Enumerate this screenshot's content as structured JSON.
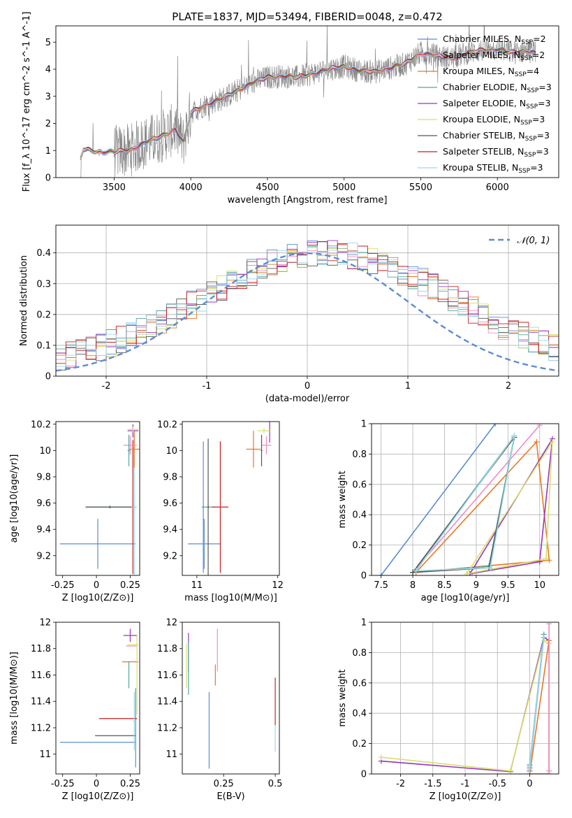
{
  "figure": {
    "title": "PLATE=1837, MJD=53494, FIBERID=0048, z=0.472"
  },
  "colors": {
    "chabrier_miles": "#5b8bd6",
    "salpeter_miles": "#ee8bc7",
    "kroupa_miles": "#e87722",
    "chabrier_elodie": "#53a6a0",
    "salpeter_elodie": "#9933bb",
    "kroupa_elodie": "#d6e06b",
    "chabrier_stelib": "#555555",
    "salpeter_stelib": "#c81e1e",
    "kroupa_stelib": "#9ad8e8",
    "data": "#888888"
  },
  "models": [
    {
      "key": "chabrier_miles",
      "prefix": "Chabrier MILES, N",
      "n": "2"
    },
    {
      "key": "salpeter_miles",
      "prefix": "Salpeter MILES, N",
      "n": "2"
    },
    {
      "key": "kroupa_miles",
      "prefix": "Kroupa MILES, N",
      "n": "4"
    },
    {
      "key": "chabrier_elodie",
      "prefix": "Chabrier ELODIE, N",
      "n": "3"
    },
    {
      "key": "salpeter_elodie",
      "prefix": "Salpeter ELODIE, N",
      "n": "3"
    },
    {
      "key": "kroupa_elodie",
      "prefix": "Kroupa ELODIE, N",
      "n": "3"
    },
    {
      "key": "chabrier_stelib",
      "prefix": "Chabrier STELIB, N",
      "n": "3"
    },
    {
      "key": "salpeter_stelib",
      "prefix": "Salpeter STELIB, N",
      "n": "3"
    },
    {
      "key": "kroupa_stelib",
      "prefix": "Kroupa STELIB, N",
      "n": "3"
    }
  ],
  "chart_data": [
    {
      "id": "spectrum",
      "type": "line",
      "xlabel": "wavelength [Angstrom, rest frame]",
      "ylabel": "Flux [f_λ 10^-17 erg cm^-2 s^-1 A^-1]",
      "xlim": [
        3120,
        6400
      ],
      "ylim": [
        0,
        5.6
      ],
      "xticks": [
        3500,
        4000,
        4500,
        5000,
        5500,
        6000
      ],
      "yticks": [
        0,
        1,
        2,
        3,
        4,
        5
      ],
      "grid": false,
      "legend": "top-right",
      "model_continuum": {
        "x": [
          3270,
          3300,
          3400,
          3500,
          3600,
          3700,
          3800,
          3900,
          3950,
          4000,
          4100,
          4200,
          4300,
          4400,
          4500,
          4600,
          4700,
          4800,
          4900,
          5000,
          5100,
          5200,
          5300,
          5400,
          5500,
          5600,
          5700,
          5800,
          5900,
          6000,
          6100,
          6200,
          6250
        ],
        "y": [
          0.5,
          1.05,
          0.95,
          0.95,
          1.0,
          1.3,
          1.5,
          1.8,
          1.3,
          2.4,
          2.7,
          2.9,
          3.2,
          3.5,
          3.7,
          3.75,
          3.7,
          3.85,
          4.0,
          4.1,
          3.95,
          3.9,
          4.05,
          4.2,
          4.6,
          4.5,
          4.4,
          4.6,
          4.7,
          4.75,
          4.6,
          4.7,
          4.6
        ]
      }
    },
    {
      "id": "residuals",
      "type": "line",
      "xlabel": "(data-model)/error",
      "ylabel": "Normed distribution",
      "xlim": [
        -2.5,
        2.5
      ],
      "ylim": [
        0,
        0.49
      ],
      "xticks": [
        -2,
        -1,
        0,
        1,
        2
      ],
      "yticks": [
        0.0,
        0.1,
        0.2,
        0.3,
        0.4
      ],
      "grid": true,
      "legend_label": "𝒩(0, 1)",
      "legend": "top-right",
      "gaussian": {
        "mean": 0,
        "sigma": 1
      }
    },
    {
      "id": "z_age",
      "type": "scatter",
      "xlabel": "Z [log10(Z/Z⊙)]",
      "ylabel": "age [log10(age/yr)]",
      "xlim": [
        -0.3,
        0.32
      ],
      "ylim": [
        9.05,
        10.22
      ],
      "xticks": [
        -0.25,
        0.0,
        0.25
      ],
      "yticks": [
        9.2,
        9.4,
        9.6,
        9.8,
        10.0,
        10.2
      ],
      "points": [
        {
          "m": "chabrier_miles",
          "x": 0.01,
          "y": 9.29,
          "xe": 0.28,
          "ye": 0.19
        },
        {
          "m": "chabrier_elodie",
          "x": 0.1,
          "y": 9.57,
          "xe": 0.18,
          "ye": 0.01
        },
        {
          "m": "chabrier_stelib",
          "x": 0.1,
          "y": 9.57,
          "xe": 0.18,
          "ye": 0.01
        },
        {
          "m": "salpeter_stelib",
          "x": 0.27,
          "y": 9.57,
          "xe": 0.02,
          "ye": 0.51
        },
        {
          "m": "kroupa_stelib",
          "x": 0.28,
          "y": 9.57,
          "xe": 0.02,
          "ye": 0.55
        },
        {
          "m": "kroupa_miles",
          "x": 0.28,
          "y": 10.01,
          "xe": 0.04,
          "ye": 0.14
        },
        {
          "m": "salpeter_miles",
          "x": 0.25,
          "y": 10.04,
          "xe": 0.05,
          "ye": 0.07
        },
        {
          "m": "salpeter_elodie",
          "x": 0.27,
          "y": 10.15,
          "xe": 0.04,
          "ye": 0.05
        },
        {
          "m": "kroupa_elodie",
          "x": 0.27,
          "y": 10.16,
          "xe": 0.04,
          "ye": 0.02
        },
        {
          "m": "chabrier_elodie",
          "x": 0.24,
          "y": 10.0,
          "xe": 0.01,
          "ye": 0.12
        }
      ]
    },
    {
      "id": "mass_age",
      "type": "scatter",
      "xlabel": "mass [log10(M/M⊙)]",
      "ylabel": "",
      "xlim": [
        10.82,
        12.02
      ],
      "ylim": [
        9.05,
        10.22
      ],
      "xticks": [
        11,
        12
      ],
      "yticks": [
        9.2,
        9.4,
        9.6,
        9.8,
        10.0,
        10.2
      ],
      "points": [
        {
          "m": "chabrier_miles",
          "x": 11.09,
          "y": 9.29,
          "xe": 0.2,
          "ye": 0.19
        },
        {
          "m": "chabrier_miles",
          "x": 11.08,
          "y": 9.57,
          "xe": 0.01,
          "ye": 0.5
        },
        {
          "m": "chabrier_elodie",
          "x": 11.14,
          "y": 9.57,
          "xe": 0.08,
          "ye": 0.01
        },
        {
          "m": "chabrier_stelib",
          "x": 11.14,
          "y": 9.57,
          "xe": 0.01,
          "ye": 0.52
        },
        {
          "m": "salpeter_stelib",
          "x": 11.29,
          "y": 9.57,
          "xe": 0.1,
          "ye": 0.5
        },
        {
          "m": "kroupa_miles",
          "x": 11.7,
          "y": 10.01,
          "xe": 0.09,
          "ye": 0.14
        },
        {
          "m": "salpeter_miles",
          "x": 11.86,
          "y": 10.04,
          "xe": 0.06,
          "ye": 0.07
        },
        {
          "m": "salpeter_elodie",
          "x": 11.9,
          "y": 10.15,
          "xe": 0.01,
          "ye": 0.09
        },
        {
          "m": "kroupa_elodie",
          "x": 11.83,
          "y": 10.15,
          "xe": 0.08,
          "ye": 0.02
        },
        {
          "m": "chabrier_stelib",
          "x": 11.8,
          "y": 10.0,
          "xe": 0.01,
          "ye": 0.12
        }
      ]
    },
    {
      "id": "age_weight",
      "type": "line",
      "xlabel": "age [log10(age/yr)]",
      "ylabel": "mass weight",
      "xlim": [
        7.35,
        10.3
      ],
      "ylim": [
        0,
        1
      ],
      "xticks": [
        7.5,
        8.0,
        8.5,
        9.0,
        9.5,
        10.0
      ],
      "yticks": [
        0.0,
        0.2,
        0.4,
        0.6,
        0.8,
        1.0
      ],
      "grid": true,
      "series": [
        {
          "m": "chabrier_miles",
          "x": [
            7.5,
            9.3
          ],
          "y": [
            0.0,
            1.0
          ]
        },
        {
          "m": "salpeter_miles",
          "x": [
            8.0,
            10.0
          ],
          "y": [
            0.02,
            0.99
          ]
        },
        {
          "m": "kroupa_miles",
          "x": [
            8.05,
            9.95,
            10.15,
            8.05
          ],
          "y": [
            0.02,
            0.88,
            0.1,
            0.02
          ]
        },
        {
          "m": "chabrier_elodie",
          "x": [
            8.0,
            9.2,
            9.6,
            8.0
          ],
          "y": [
            0.02,
            0.06,
            0.92,
            0.02
          ]
        },
        {
          "m": "salpeter_elodie",
          "x": [
            8.9,
            10.0,
            10.2,
            8.9
          ],
          "y": [
            0.01,
            0.09,
            0.9,
            0.01
          ]
        },
        {
          "m": "kroupa_elodie",
          "x": [
            8.85,
            10.1,
            10.2,
            8.85
          ],
          "y": [
            0.01,
            0.11,
            0.88,
            0.01
          ]
        },
        {
          "m": "chabrier_stelib",
          "x": [
            8.0,
            9.2,
            9.6,
            8.0
          ],
          "y": [
            0.02,
            0.05,
            0.91,
            0.02
          ]
        },
        {
          "m": "kroupa_stelib",
          "x": [
            8.05,
            9.22,
            9.6,
            8.05
          ],
          "y": [
            0.03,
            0.05,
            0.92,
            0.03
          ]
        }
      ]
    },
    {
      "id": "z_mass",
      "type": "scatter",
      "xlabel": "Z [log10(Z/Z⊙)]",
      "ylabel": "mass [log10(M/M⊙)]",
      "xlim": [
        -0.3,
        0.32
      ],
      "ylim": [
        10.85,
        12.0
      ],
      "xticks": [
        -0.25,
        0.0,
        0.25
      ],
      "yticks": [
        11.0,
        11.2,
        11.4,
        11.6,
        11.8,
        12.0
      ],
      "points": [
        {
          "m": "chabrier_miles",
          "x": 0.01,
          "y": 11.09,
          "xe": 0.28,
          "ye": 0.0
        },
        {
          "m": "chabrier_miles",
          "x": 0.29,
          "y": 11.2,
          "xe": 0.0,
          "ye": 0.3
        },
        {
          "m": "chabrier_stelib",
          "x": 0.14,
          "y": 11.14,
          "xe": 0.15,
          "ye": 0.0
        },
        {
          "m": "salpeter_stelib",
          "x": 0.16,
          "y": 11.27,
          "xe": 0.14,
          "ye": 0.0
        },
        {
          "m": "kroupa_stelib",
          "x": 0.28,
          "y": 11.25,
          "xe": 0.01,
          "ye": 0.22
        },
        {
          "m": "kroupa_miles",
          "x": 0.25,
          "y": 11.7,
          "xe": 0.06,
          "ye": 0.0
        },
        {
          "m": "salpeter_miles",
          "x": 0.26,
          "y": 11.82,
          "xe": 0.04,
          "ye": 0.0
        },
        {
          "m": "salpeter_elodie",
          "x": 0.25,
          "y": 11.9,
          "xe": 0.05,
          "ye": 0.05
        },
        {
          "m": "kroupa_elodie",
          "x": 0.27,
          "y": 11.83,
          "xe": 0.04,
          "ye": 0.0
        },
        {
          "m": "chabrier_elodie",
          "x": 0.24,
          "y": 11.6,
          "xe": 0.0,
          "ye": 0.1
        },
        {
          "m": "kroupa_elodie",
          "x": 0.3,
          "y": 11.6,
          "xe": 0.0,
          "ye": 0.3
        }
      ]
    },
    {
      "id": "ebv_mass",
      "type": "scatter",
      "xlabel": "E(B-V)",
      "ylabel": "",
      "xlim": [
        0.05,
        0.52
      ],
      "ylim": [
        10.85,
        12.0
      ],
      "xticks": [
        0.25,
        0.5
      ],
      "yticks": [
        11.0,
        11.2,
        11.4,
        11.6,
        11.8,
        12.0
      ],
      "points": [
        {
          "m": "chabrier_miles",
          "x": 0.18,
          "y": 11.18,
          "xe": 0.0,
          "ye": 0.29
        },
        {
          "m": "salpeter_miles",
          "x": 0.22,
          "y": 11.79,
          "xe": 0.0,
          "ye": 0.16
        },
        {
          "m": "kroupa_miles",
          "x": 0.21,
          "y": 11.6,
          "xe": 0.0,
          "ye": 0.08
        },
        {
          "m": "salpeter_elodie",
          "x": 0.08,
          "y": 11.77,
          "xe": 0.0,
          "ye": 0.15
        },
        {
          "m": "kroupa_elodie",
          "x": 0.07,
          "y": 11.67,
          "xe": 0.0,
          "ye": 0.17
        },
        {
          "m": "chabrier_elodie",
          "x": 0.08,
          "y": 11.65,
          "xe": 0.0,
          "ye": 0.2
        },
        {
          "m": "salpeter_stelib",
          "x": 0.5,
          "y": 11.4,
          "xe": 0.0,
          "ye": 0.18
        },
        {
          "m": "kroupa_stelib",
          "x": 0.5,
          "y": 11.12,
          "xe": 0.0,
          "ye": 0.1
        }
      ]
    },
    {
      "id": "z_weight",
      "type": "line",
      "xlabel": "Z [log10(Z/Z⊙)]",
      "ylabel": "mass weight",
      "xlim": [
        -2.45,
        0.45
      ],
      "ylim": [
        0,
        1
      ],
      "xticks": [
        -2.0,
        -1.5,
        -1.0,
        -0.5,
        0.0
      ],
      "yticks": [
        0.0,
        0.2,
        0.4,
        0.6,
        0.8,
        1.0
      ],
      "grid": true,
      "series": [
        {
          "m": "salpeter_elodie",
          "x": [
            -2.3,
            -0.3,
            0.22,
            0.3
          ],
          "y": [
            0.085,
            0.015,
            0.9,
            0.88
          ]
        },
        {
          "m": "kroupa_elodie",
          "x": [
            -2.3,
            -0.3,
            0.22,
            0.3
          ],
          "y": [
            0.11,
            0.02,
            0.88,
            0.86
          ]
        },
        {
          "m": "chabrier_elodie",
          "x": [
            0.0,
            0.22,
            0.0
          ],
          "y": [
            0.02,
            0.92,
            0.06
          ]
        },
        {
          "m": "chabrier_miles",
          "x": [
            0.0,
            0.22,
            0.0
          ],
          "y": [
            0.02,
            0.9,
            0.04
          ]
        },
        {
          "m": "kroupa_miles",
          "x": [
            0.0,
            0.3,
            0.3,
            0.0
          ],
          "y": [
            0.0,
            0.88,
            0.0,
            0.0
          ]
        },
        {
          "m": "salpeter_miles",
          "x": [
            0.3,
            0.3
          ],
          "y": [
            0.02,
            0.99
          ]
        },
        {
          "m": "kroupa_stelib",
          "x": [
            0.0,
            0.22,
            0.0
          ],
          "y": [
            0.03,
            0.9,
            0.05
          ]
        }
      ]
    }
  ]
}
